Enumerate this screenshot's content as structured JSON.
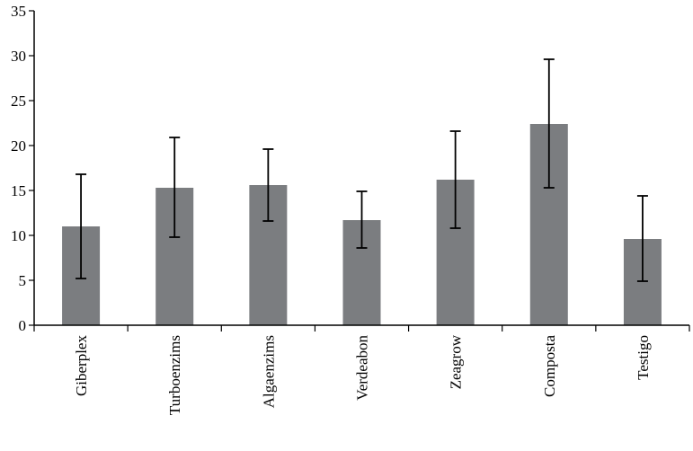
{
  "chart_data": {
    "type": "bar",
    "title": "",
    "xlabel": "",
    "ylabel": "",
    "ylim": [
      0,
      35
    ],
    "yticks": [
      0,
      5,
      10,
      15,
      20,
      25,
      30,
      35
    ],
    "categories": [
      "Giberplex",
      "Turboenzims",
      "Algaenzims",
      "Verdeabon",
      "Zeagrow",
      "Composta",
      "Testigo"
    ],
    "values": [
      11.0,
      15.3,
      15.6,
      11.7,
      16.2,
      22.4,
      9.6
    ],
    "error_low": [
      5.2,
      9.8,
      11.6,
      8.6,
      10.8,
      15.3,
      4.9
    ],
    "error_high": [
      16.8,
      20.9,
      19.6,
      14.9,
      21.6,
      29.6,
      14.4
    ],
    "grid": false,
    "bar_color": "#7b7d80",
    "axis_color": "#000000"
  }
}
